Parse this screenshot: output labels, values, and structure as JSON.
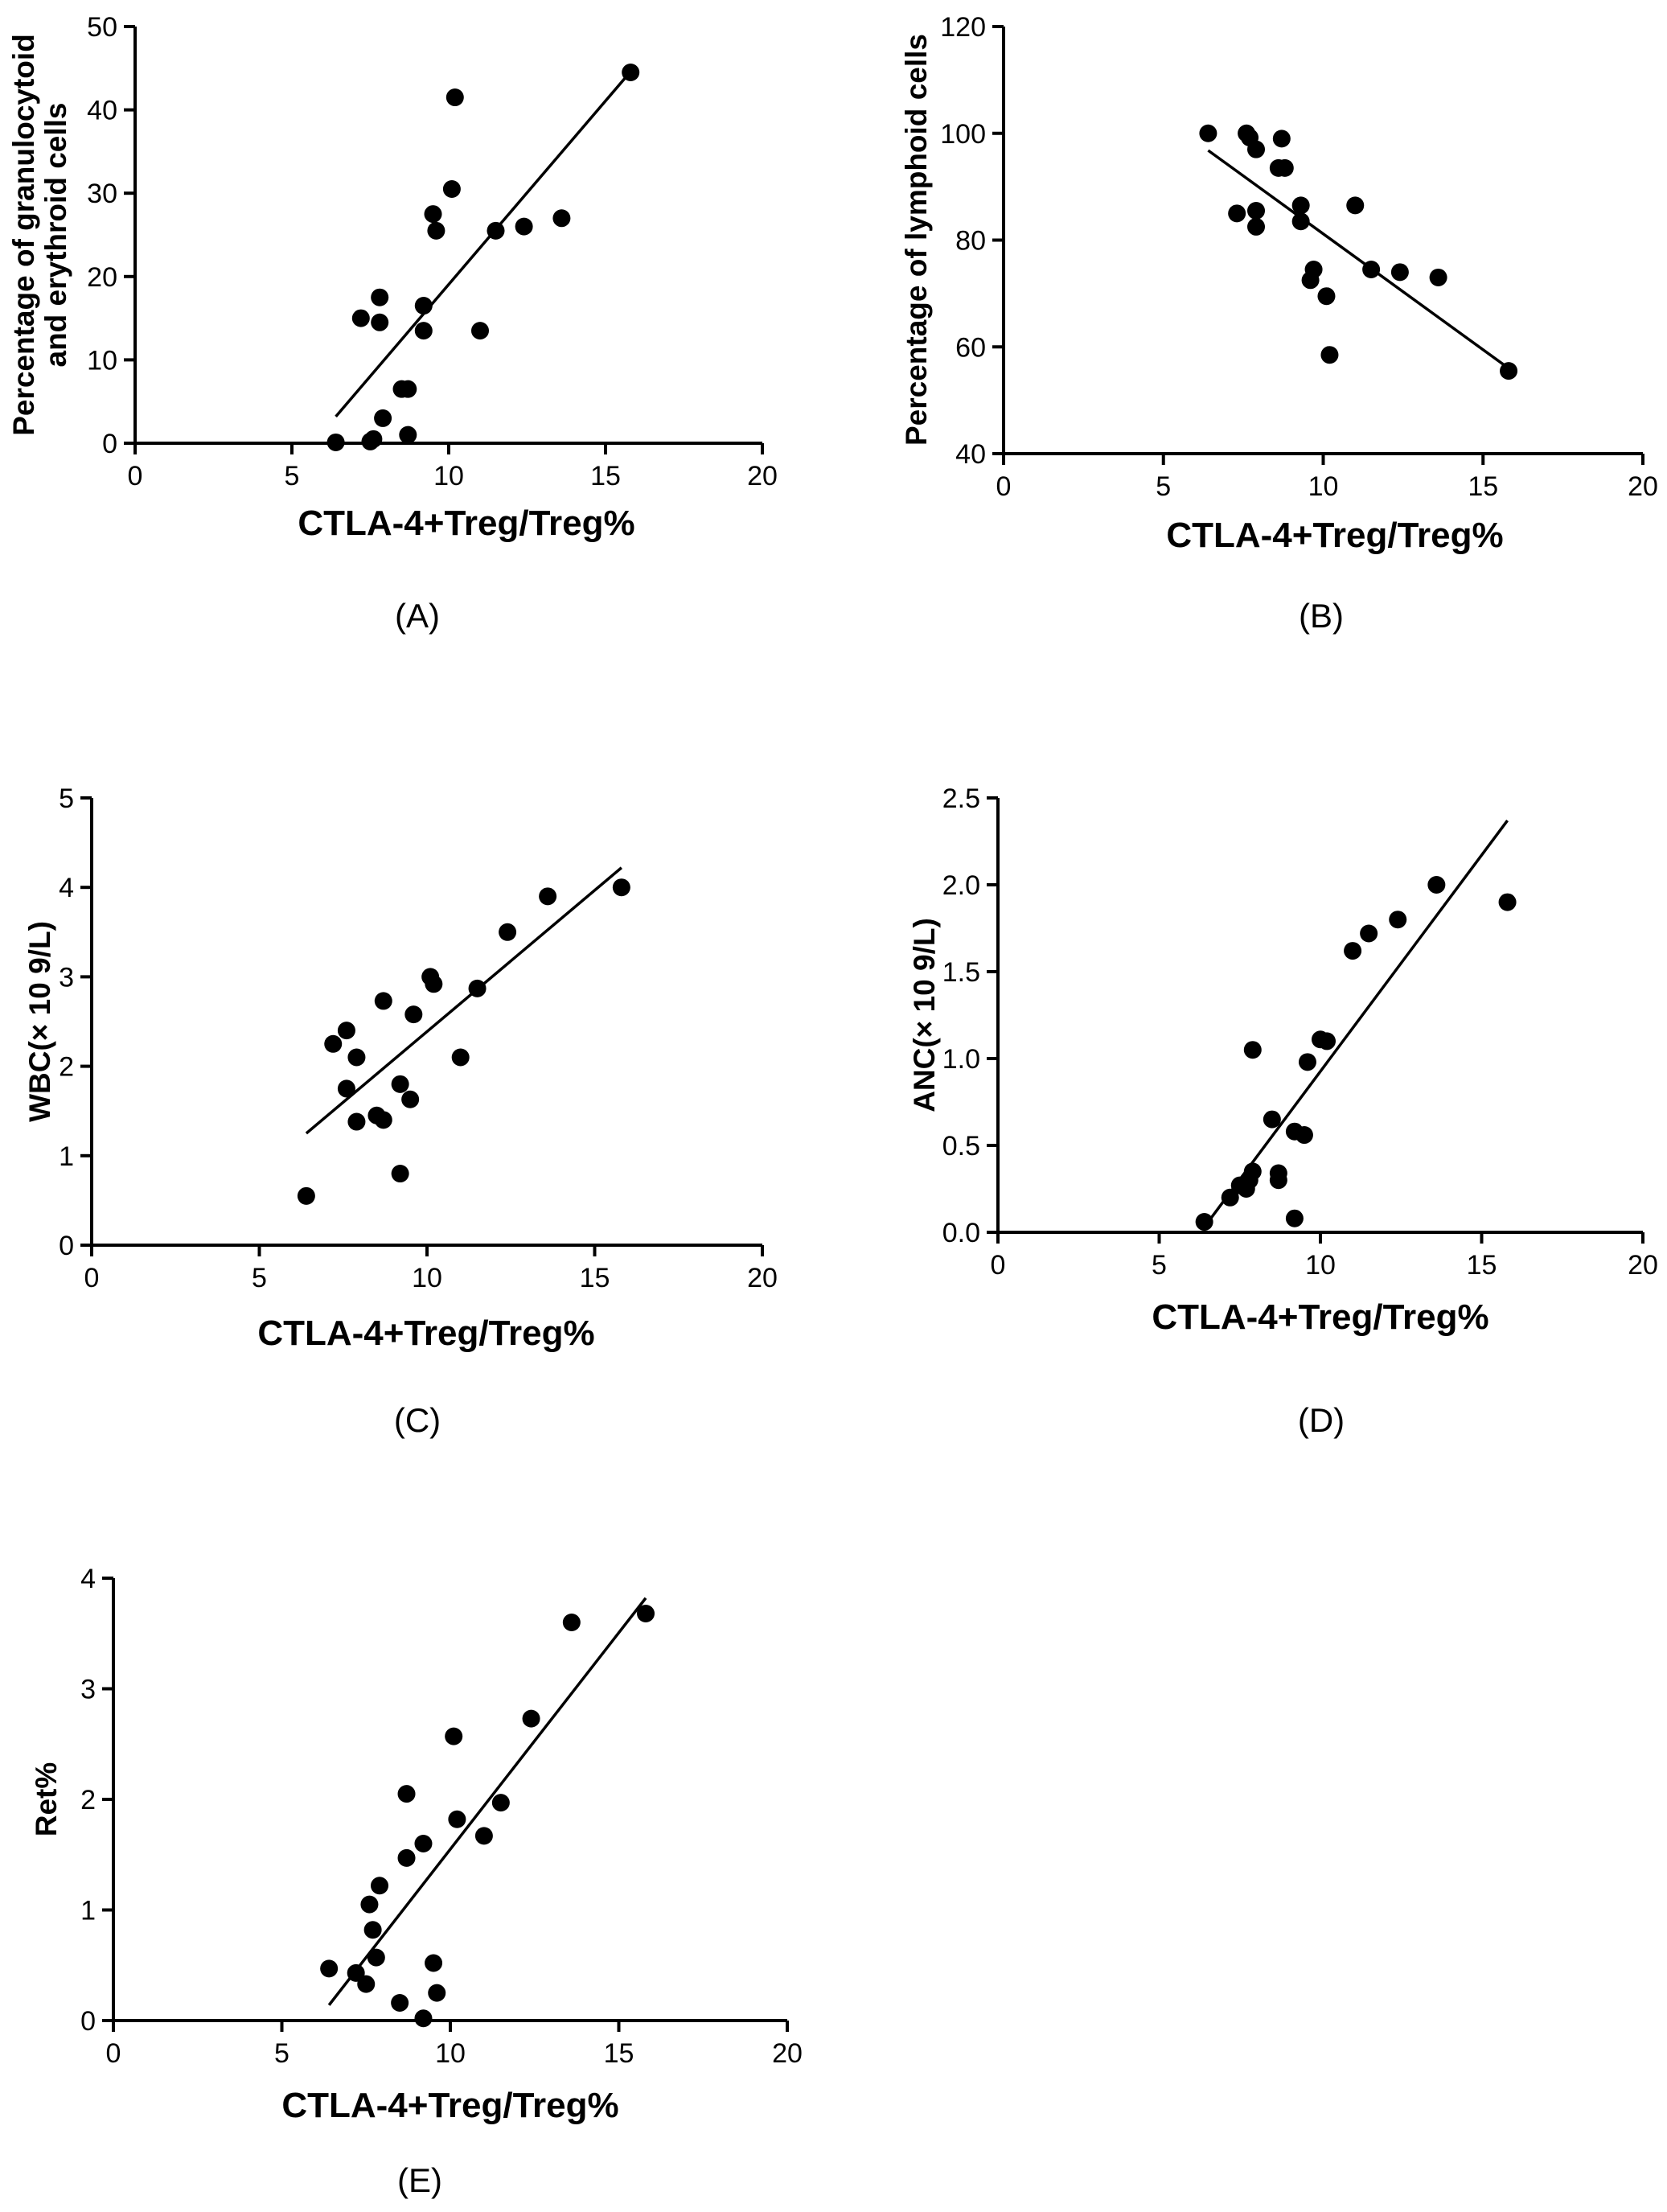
{
  "chart_data": [
    {
      "panel": "(A)",
      "type": "scatter",
      "xlabel": "CTLA-4+Treg/Treg%",
      "ylabel": [
        "Percentage of granulocytoid",
        "and erythroid cells"
      ],
      "xlim": [
        0,
        20
      ],
      "ylim": [
        0,
        50
      ],
      "xticks": [
        0,
        5,
        10,
        15,
        20
      ],
      "yticks": [
        0,
        10,
        20,
        30,
        40,
        50
      ],
      "points": [
        {
          "x": 6.4,
          "y": 0.1
        },
        {
          "x": 7.5,
          "y": 0.2
        },
        {
          "x": 7.6,
          "y": 0.5
        },
        {
          "x": 7.2,
          "y": 15.0
        },
        {
          "x": 7.8,
          "y": 17.5
        },
        {
          "x": 7.8,
          "y": 14.5
        },
        {
          "x": 7.9,
          "y": 3.0
        },
        {
          "x": 8.5,
          "y": 6.5
        },
        {
          "x": 8.7,
          "y": 6.5
        },
        {
          "x": 8.7,
          "y": 1.0
        },
        {
          "x": 9.2,
          "y": 16.5
        },
        {
          "x": 9.2,
          "y": 13.5
        },
        {
          "x": 9.5,
          "y": 27.5
        },
        {
          "x": 9.6,
          "y": 25.5
        },
        {
          "x": 10.1,
          "y": 30.5
        },
        {
          "x": 10.2,
          "y": 41.5
        },
        {
          "x": 11.0,
          "y": 13.5
        },
        {
          "x": 11.5,
          "y": 25.5
        },
        {
          "x": 12.4,
          "y": 26.0
        },
        {
          "x": 13.6,
          "y": 27.0
        },
        {
          "x": 15.8,
          "y": 44.5
        }
      ],
      "fit_line": {
        "x": [
          6.4,
          15.8
        ],
        "y": [
          3.2,
          44.6
        ]
      }
    },
    {
      "panel": "(B)",
      "type": "scatter",
      "xlabel": "CTLA-4+Treg/Treg%",
      "ylabel": [
        "Percentage of lymphoid cells"
      ],
      "xlim": [
        0,
        20
      ],
      "ylim": [
        40,
        120
      ],
      "xticks": [
        0,
        5,
        10,
        15,
        20
      ],
      "yticks": [
        40,
        60,
        80,
        100,
        120
      ],
      "points": [
        {
          "x": 6.4,
          "y": 100.0
        },
        {
          "x": 7.6,
          "y": 100.0
        },
        {
          "x": 7.7,
          "y": 99.2
        },
        {
          "x": 7.9,
          "y": 97.0
        },
        {
          "x": 8.7,
          "y": 99.0
        },
        {
          "x": 8.6,
          "y": 93.5
        },
        {
          "x": 8.8,
          "y": 93.5
        },
        {
          "x": 7.3,
          "y": 85.0
        },
        {
          "x": 7.9,
          "y": 85.5
        },
        {
          "x": 7.9,
          "y": 82.5
        },
        {
          "x": 9.3,
          "y": 86.5
        },
        {
          "x": 9.3,
          "y": 83.5
        },
        {
          "x": 9.7,
          "y": 74.5
        },
        {
          "x": 9.6,
          "y": 72.5
        },
        {
          "x": 10.1,
          "y": 69.5
        },
        {
          "x": 10.2,
          "y": 58.5
        },
        {
          "x": 11.0,
          "y": 86.5
        },
        {
          "x": 11.5,
          "y": 74.5
        },
        {
          "x": 12.4,
          "y": 74.0
        },
        {
          "x": 13.6,
          "y": 73.0
        },
        {
          "x": 15.8,
          "y": 55.5
        }
      ],
      "fit_line": {
        "x": [
          6.4,
          15.8
        ],
        "y": [
          96.8,
          56.0
        ]
      }
    },
    {
      "panel": "(C)",
      "type": "scatter",
      "xlabel": "CTLA-4+Treg/Treg%",
      "ylabel": [
        "WBC(× 10 9/L)"
      ],
      "xlim": [
        0,
        20
      ],
      "ylim": [
        0,
        5
      ],
      "xticks": [
        0,
        5,
        10,
        15,
        20
      ],
      "yticks": [
        0,
        1,
        2,
        3,
        4,
        5
      ],
      "points": [
        {
          "x": 6.4,
          "y": 0.55
        },
        {
          "x": 7.2,
          "y": 2.25
        },
        {
          "x": 7.6,
          "y": 2.4
        },
        {
          "x": 7.6,
          "y": 1.75
        },
        {
          "x": 7.9,
          "y": 2.1
        },
        {
          "x": 7.9,
          "y": 1.38
        },
        {
          "x": 8.5,
          "y": 1.45
        },
        {
          "x": 8.7,
          "y": 1.4
        },
        {
          "x": 8.7,
          "y": 2.73
        },
        {
          "x": 9.2,
          "y": 1.8
        },
        {
          "x": 9.2,
          "y": 0.8
        },
        {
          "x": 9.5,
          "y": 1.63
        },
        {
          "x": 9.6,
          "y": 2.58
        },
        {
          "x": 10.1,
          "y": 3.0
        },
        {
          "x": 10.2,
          "y": 2.92
        },
        {
          "x": 11.0,
          "y": 2.1
        },
        {
          "x": 11.5,
          "y": 2.87
        },
        {
          "x": 12.4,
          "y": 3.5
        },
        {
          "x": 13.6,
          "y": 3.9
        },
        {
          "x": 15.8,
          "y": 4.0
        }
      ],
      "fit_line": {
        "x": [
          6.4,
          15.8
        ],
        "y": [
          1.25,
          4.22
        ]
      }
    },
    {
      "panel": "(D)",
      "type": "scatter",
      "xlabel": "CTLA-4+Treg/Treg%",
      "ylabel": [
        "ANC(× 10 9/L)"
      ],
      "xlim": [
        0,
        20
      ],
      "ylim": [
        0,
        2.5
      ],
      "xticks": [
        0,
        5,
        10,
        15,
        20
      ],
      "yticks": [
        "0.0",
        "0.5",
        "1.0",
        "1.5",
        "2.0",
        "2.5"
      ],
      "points": [
        {
          "x": 6.4,
          "y": 0.06
        },
        {
          "x": 7.2,
          "y": 0.2
        },
        {
          "x": 7.5,
          "y": 0.27
        },
        {
          "x": 7.7,
          "y": 0.25
        },
        {
          "x": 7.8,
          "y": 0.3
        },
        {
          "x": 7.9,
          "y": 0.35
        },
        {
          "x": 7.9,
          "y": 1.05
        },
        {
          "x": 8.5,
          "y": 0.65
        },
        {
          "x": 8.7,
          "y": 0.34
        },
        {
          "x": 8.7,
          "y": 0.3
        },
        {
          "x": 9.2,
          "y": 0.58
        },
        {
          "x": 9.2,
          "y": 0.08
        },
        {
          "x": 9.5,
          "y": 0.56
        },
        {
          "x": 9.6,
          "y": 0.98
        },
        {
          "x": 10.0,
          "y": 1.11
        },
        {
          "x": 10.2,
          "y": 1.1
        },
        {
          "x": 11.0,
          "y": 1.62
        },
        {
          "x": 11.5,
          "y": 1.72
        },
        {
          "x": 12.4,
          "y": 1.8
        },
        {
          "x": 13.6,
          "y": 2.0
        },
        {
          "x": 15.8,
          "y": 1.9
        }
      ],
      "fit_line": {
        "x": [
          6.4,
          15.8
        ],
        "y": [
          0.03,
          2.37
        ]
      }
    },
    {
      "panel": "(E)",
      "type": "scatter",
      "xlabel": "CTLA-4+Treg/Treg%",
      "ylabel": [
        "Ret%"
      ],
      "xlim": [
        0,
        20
      ],
      "ylim": [
        0,
        4
      ],
      "xticks": [
        0,
        5,
        10,
        15,
        20
      ],
      "yticks": [
        0,
        1,
        2,
        3,
        4
      ],
      "points": [
        {
          "x": 6.4,
          "y": 0.47
        },
        {
          "x": 7.2,
          "y": 0.43
        },
        {
          "x": 7.5,
          "y": 0.33
        },
        {
          "x": 7.6,
          "y": 1.05
        },
        {
          "x": 7.7,
          "y": 0.82
        },
        {
          "x": 7.8,
          "y": 0.57
        },
        {
          "x": 7.9,
          "y": 1.22
        },
        {
          "x": 8.5,
          "y": 0.16
        },
        {
          "x": 8.7,
          "y": 1.47
        },
        {
          "x": 8.7,
          "y": 2.05
        },
        {
          "x": 9.2,
          "y": 1.6
        },
        {
          "x": 9.2,
          "y": 0.02
        },
        {
          "x": 9.5,
          "y": 0.52
        },
        {
          "x": 9.6,
          "y": 0.25
        },
        {
          "x": 10.1,
          "y": 2.57
        },
        {
          "x": 10.2,
          "y": 1.82
        },
        {
          "x": 11.0,
          "y": 1.67
        },
        {
          "x": 11.5,
          "y": 1.97
        },
        {
          "x": 12.4,
          "y": 2.73
        },
        {
          "x": 13.6,
          "y": 3.6
        },
        {
          "x": 15.8,
          "y": 3.68
        }
      ],
      "fit_line": {
        "x": [
          6.4,
          15.8
        ],
        "y": [
          0.14,
          3.82
        ]
      }
    }
  ]
}
